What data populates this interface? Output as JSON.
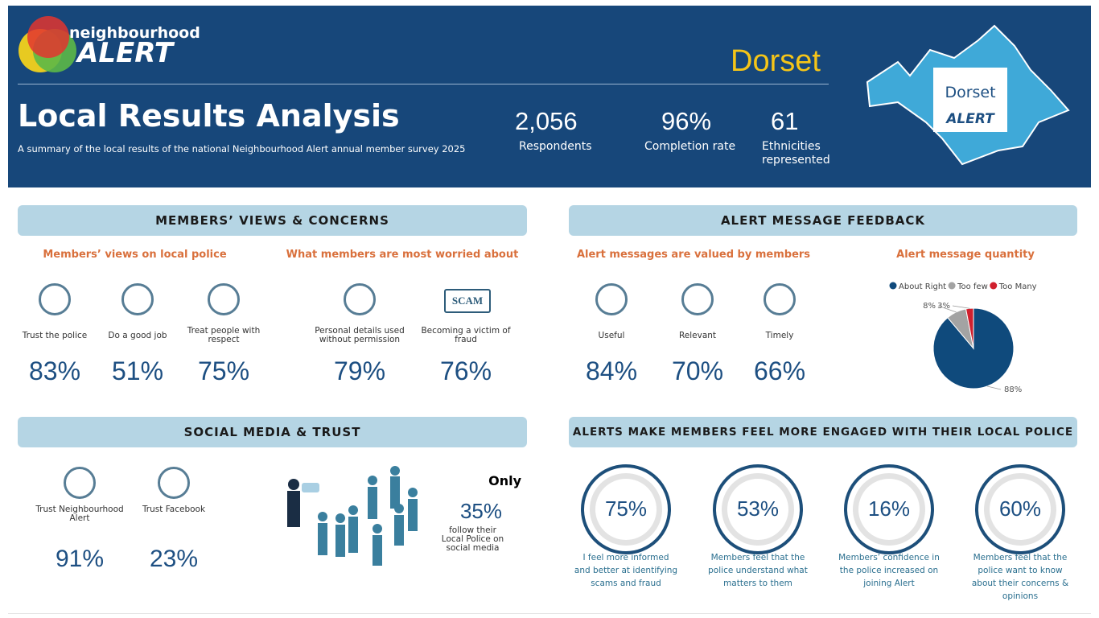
{
  "header": {
    "logo_small": "neighbourhood",
    "logo_big": "ALERT",
    "region": "Dorset",
    "title": "Local Results Analysis",
    "subtitle": "A summary of the local results of the national Neighbourhood Alert annual member survey 2025",
    "stats": [
      {
        "value": "2,056",
        "label": "Respondents"
      },
      {
        "value": "96%",
        "label": "Completion rate"
      },
      {
        "value": "61",
        "label": "Ethnicities represented"
      }
    ],
    "badge_top": "Dorset",
    "badge_bottom": "ALERT"
  },
  "views": {
    "title": "MEMBERS’ VIEWS & CONCERNS",
    "police": {
      "heading": "Members’ views on local police",
      "items": [
        {
          "label": "Trust the police",
          "value": "83%"
        },
        {
          "label": "Do a good job",
          "value": "51%"
        },
        {
          "label": "Treat people with respect",
          "value": "75%"
        }
      ]
    },
    "worried": {
      "heading": "What members are most worried about",
      "icon_text": "SCAM",
      "items": [
        {
          "label": "Personal details used without permission",
          "value": "79%"
        },
        {
          "label": "Becoming a victim of fraud",
          "value": "76%"
        }
      ]
    }
  },
  "feedback": {
    "title": "ALERT MESSAGE FEEDBACK",
    "valued": {
      "heading": "Alert messages are valued by members",
      "items": [
        {
          "label": "Useful",
          "value": "84%"
        },
        {
          "label": "Relevant",
          "value": "70%"
        },
        {
          "label": "Timely",
          "value": "66%"
        }
      ]
    }
  },
  "chart_data": {
    "type": "pie",
    "title": "Alert message quantity",
    "categories": [
      "About Right",
      "Too few",
      "Too Many"
    ],
    "values": [
      88,
      8,
      3
    ],
    "value_labels": [
      "88%",
      "8%",
      "3%"
    ],
    "colors": [
      "#0f4a7c",
      "#a3a3a3",
      "#d0202e"
    ],
    "legend": "top"
  },
  "social": {
    "title": "SOCIAL MEDIA & TRUST",
    "items": [
      {
        "label": "Trust Neighbourhood Alert",
        "value": "91%"
      },
      {
        "label": "Trust Facebook",
        "value": "23%"
      }
    ],
    "only": "Only",
    "follow_value": "35%",
    "follow_label": "follow their Local Police on social media"
  },
  "engaged": {
    "title": "ALERTS MAKE MEMBERS FEEL MORE ENGAGED WITH THEIR LOCAL POLICE",
    "items": [
      {
        "value": "75%",
        "label": "I feel more informed and better at identifying scams and fraud"
      },
      {
        "value": "53%",
        "label": "Members feel that the police understand what matters to them"
      },
      {
        "value": "16%",
        "label": "Members’ confidence in the police increased on joining Alert"
      },
      {
        "value": "60%",
        "label": "Members feel that the police want to know about their concerns & opinions"
      }
    ]
  }
}
